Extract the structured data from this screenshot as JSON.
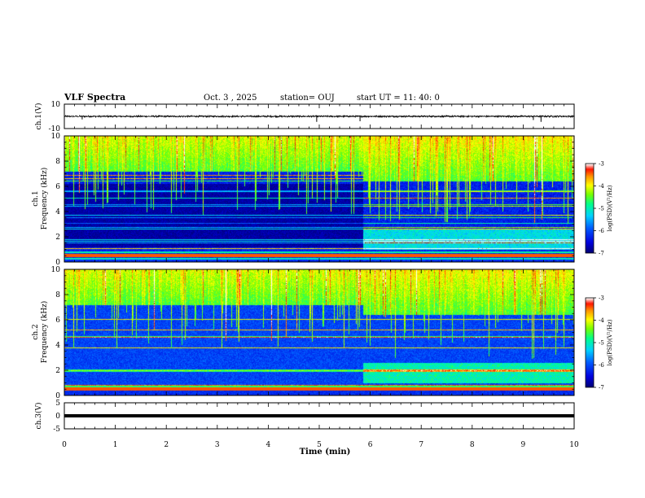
{
  "header": {
    "title": "VLF Spectra",
    "date": "Oct. 3 , 2025",
    "station": "station= OUJ",
    "start_ut": "start UT = 11: 40: 0"
  },
  "chart_data": [
    {
      "type": "line",
      "name": "ch1-waveform",
      "ylabel": "ch.1(V)",
      "ylim": [
        -10,
        10
      ],
      "ytick_labels": [
        "10",
        "-10"
      ],
      "xlim": [
        0,
        10
      ],
      "baseline_v": 0,
      "noise_amplitude_v": 1.5,
      "spikes": [
        {
          "t": 0.35,
          "v": -2.5
        },
        {
          "t": 4.95,
          "v": -4.5
        },
        {
          "t": 5.8,
          "v": -4.0
        },
        {
          "t": 9.2,
          "v": -3.0
        },
        {
          "t": 9.35,
          "v": -4.5
        }
      ]
    },
    {
      "type": "heatmap",
      "name": "ch1-spectrogram",
      "ylabel_line1": "ch.1",
      "ylabel_line2": "Frequency (kHz)",
      "ylim": [
        0,
        10
      ],
      "ytick_labels": [
        "0",
        "2",
        "4",
        "6",
        "8",
        "10"
      ],
      "xlim": [
        0,
        10
      ],
      "regime_change_min": 5.85,
      "colorbar": {
        "label": "log(PSD)(V²/Hz)",
        "range": [
          -7,
          -3
        ],
        "tick_labels": [
          "-3",
          "-4",
          "-5",
          "-6",
          "-7"
        ]
      }
    },
    {
      "type": "heatmap",
      "name": "ch2-spectrogram",
      "ylabel_line1": "ch.2",
      "ylabel_line2": "Frequency (kHz)",
      "ylim": [
        0,
        10
      ],
      "ytick_labels": [
        "0",
        "2",
        "4",
        "6",
        "8",
        "10"
      ],
      "xlim": [
        0,
        10
      ],
      "regime_change_min": 5.85,
      "colorbar": {
        "label": "log(PSD)(V²/Hz)",
        "range": [
          -7,
          -3
        ],
        "tick_labels": [
          "-3",
          "-4",
          "-5",
          "-6",
          "-7"
        ]
      }
    },
    {
      "type": "line",
      "name": "ch3-waveform",
      "ylabel": "ch.3(V)",
      "ylim": [
        -5,
        5
      ],
      "ytick_labels": [
        "5",
        "0",
        "-5"
      ],
      "xlim": [
        0,
        10
      ],
      "constant_value_v": 0
    }
  ],
  "x_axis": {
    "label": "Time (min)",
    "tick_labels": [
      "0",
      "1",
      "2",
      "3",
      "4",
      "5",
      "6",
      "7",
      "8",
      "9",
      "10"
    ]
  },
  "colors": {
    "scale": [
      "#000080",
      "#0000ff",
      "#00a0ff",
      "#00ffff",
      "#00ff80",
      "#80ff00",
      "#ffff00",
      "#ff8000",
      "#ff0000",
      "#ffffff"
    ],
    "line": "#000000"
  }
}
